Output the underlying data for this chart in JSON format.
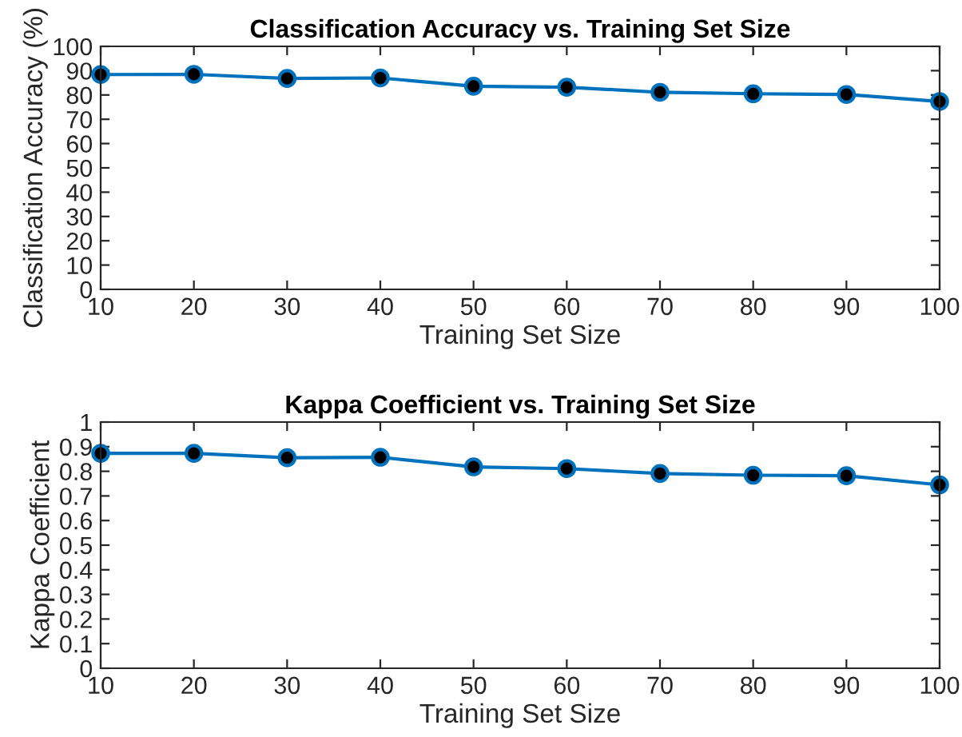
{
  "chart_data": [
    {
      "type": "line",
      "title": "Classification Accuracy vs. Training Set Size",
      "xlabel": "Training Set Size",
      "ylabel": "Classification Accuracy (%)",
      "x": [
        10,
        20,
        30,
        40,
        50,
        60,
        70,
        80,
        90,
        100
      ],
      "series": [
        {
          "color": "#0072bd",
          "values": [
            88.4,
            88.5,
            86.8,
            87.0,
            83.6,
            83.2,
            81.1,
            80.5,
            80.2,
            77.3
          ]
        }
      ],
      "xlim": [
        10,
        100
      ],
      "xticks": [
        10,
        20,
        30,
        40,
        50,
        60,
        70,
        80,
        90,
        100
      ],
      "ylim": [
        0,
        100
      ],
      "yticks": [
        0,
        10,
        20,
        30,
        40,
        50,
        60,
        70,
        80,
        90,
        100
      ],
      "marker": "circle",
      "line_style": "solid",
      "grid": false,
      "legend": false
    },
    {
      "type": "line",
      "title": "Kappa Coefficient vs. Training Set Size",
      "xlabel": "Training Set Size",
      "ylabel": "Kappa Coefficient",
      "x": [
        10,
        20,
        30,
        40,
        50,
        60,
        70,
        80,
        90,
        100
      ],
      "series": [
        {
          "color": "#0072bd",
          "values": [
            0.873,
            0.873,
            0.855,
            0.857,
            0.818,
            0.811,
            0.791,
            0.784,
            0.782,
            0.745
          ]
        }
      ],
      "xlim": [
        10,
        100
      ],
      "xticks": [
        10,
        20,
        30,
        40,
        50,
        60,
        70,
        80,
        90,
        100
      ],
      "ylim": [
        0,
        1
      ],
      "yticks": [
        0,
        0.1,
        0.2,
        0.3,
        0.4,
        0.5,
        0.6,
        0.7,
        0.8,
        0.9,
        1
      ],
      "marker": "circle",
      "line_style": "solid",
      "grid": false,
      "legend": false
    }
  ]
}
